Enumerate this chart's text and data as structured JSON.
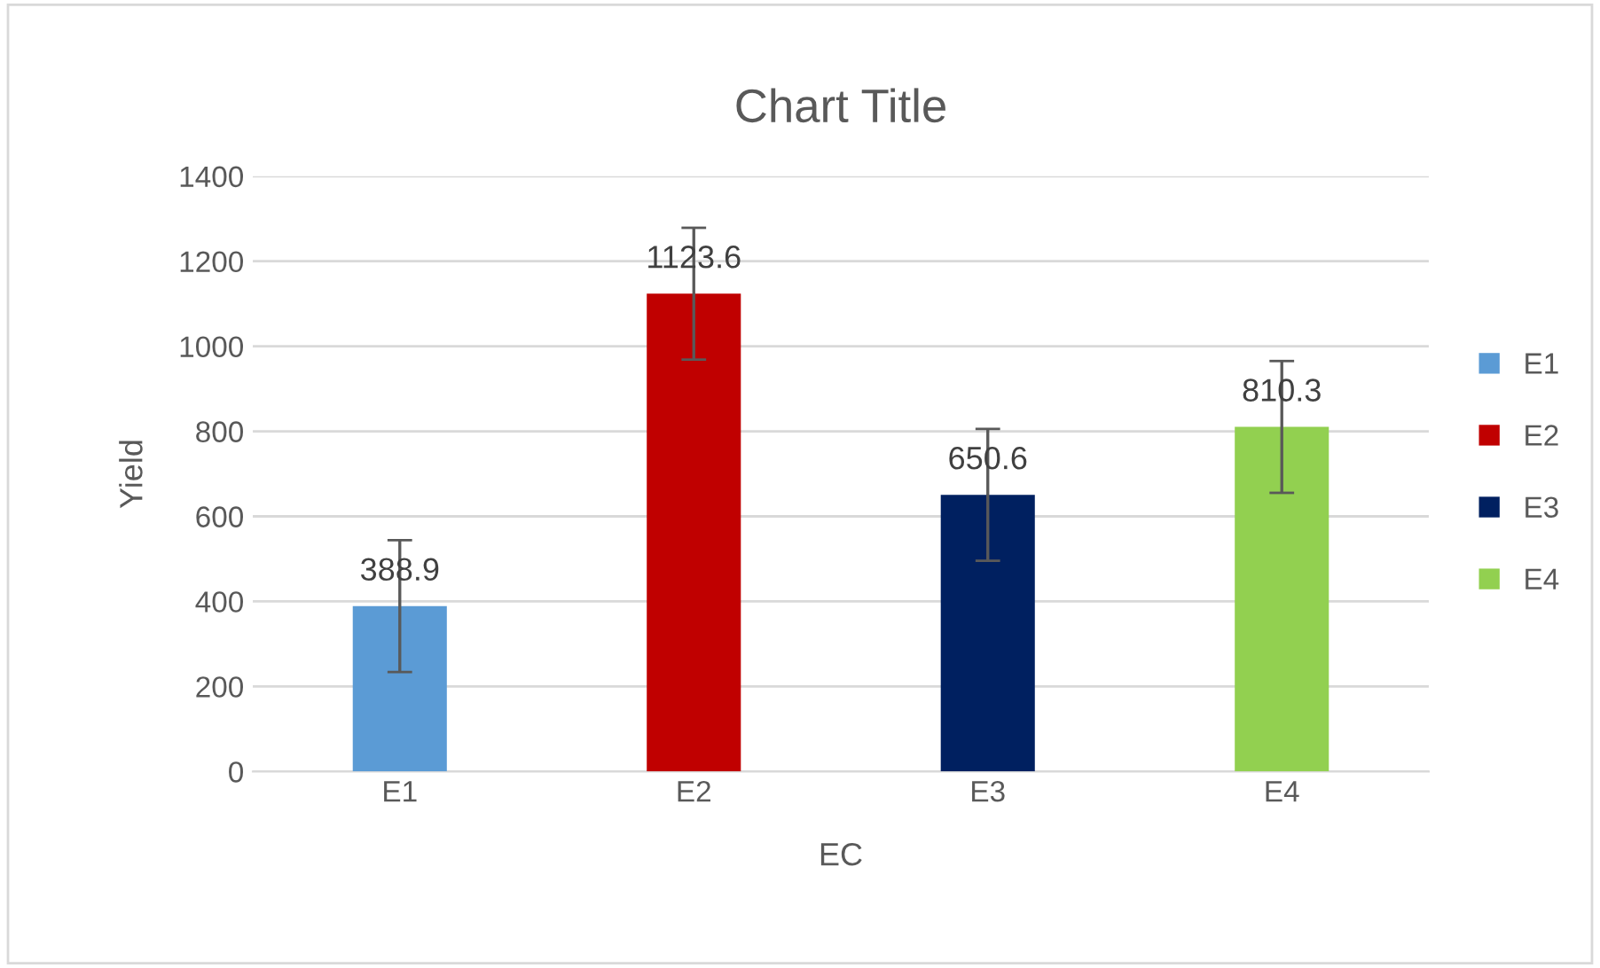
{
  "chart_data": {
    "type": "bar",
    "title": "Chart Title",
    "xlabel": "EC",
    "ylabel": "Yield",
    "categories": [
      "E1",
      "E2",
      "E3",
      "E4"
    ],
    "series": [
      {
        "name": "E1",
        "color": "#5b9bd5",
        "values": [
          388.9,
          null,
          null,
          null
        ],
        "errors": [
          155,
          null,
          null,
          null
        ]
      },
      {
        "name": "E2",
        "color": "#c00000",
        "values": [
          null,
          1123.6,
          null,
          null
        ],
        "errors": [
          null,
          155,
          null,
          null
        ]
      },
      {
        "name": "E3",
        "color": "#002060",
        "values": [
          null,
          null,
          650.6,
          null
        ],
        "errors": [
          null,
          null,
          155,
          null
        ]
      },
      {
        "name": "E4",
        "color": "#92d050",
        "values": [
          null,
          null,
          null,
          810.3
        ],
        "errors": [
          null,
          null,
          null,
          155
        ]
      }
    ],
    "ylim": [
      0,
      1400
    ],
    "yticks": [
      0,
      200,
      400,
      600,
      800,
      1000,
      1200,
      1400
    ],
    "grid": "y",
    "legend": "right",
    "data_labels": true
  }
}
